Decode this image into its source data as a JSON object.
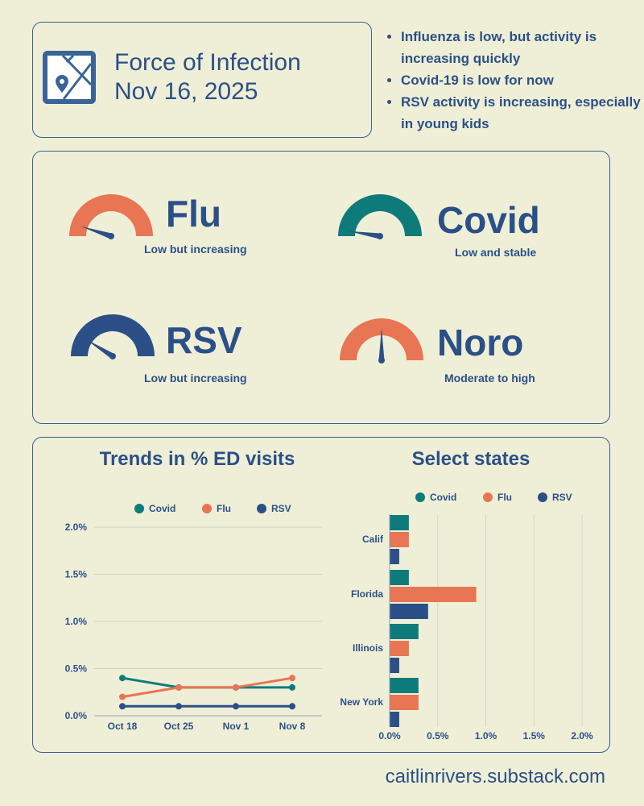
{
  "header": {
    "title_line1": "Force of Infection",
    "title_line2": "Nov 16, 2025",
    "icon": "map-pin-icon"
  },
  "bullets": [
    "Influenza is low, but activity is increasing quickly",
    "Covid-19 is low for now",
    "RSV activity is increasing, especially in young kids"
  ],
  "colors": {
    "covid": "#0e7b7b",
    "flu": "#e87553",
    "rsv": "#2b5087",
    "background": "#efefd7"
  },
  "gauges": [
    {
      "name": "Flu",
      "status": "Low but increasing",
      "color": "#e87553",
      "level": 0.1
    },
    {
      "name": "Covid",
      "status": "Low and stable",
      "color": "#0e7b7b",
      "level": 0.05
    },
    {
      "name": "RSV",
      "status": "Low but increasing",
      "color": "#2b5087",
      "level": 0.18
    },
    {
      "name": "Noro",
      "status": "Moderate to high",
      "color": "#e87553",
      "level": 0.5
    }
  ],
  "chart_data": [
    {
      "type": "line",
      "title": "Trends in % ED visits",
      "categories": [
        "Oct 18",
        "Oct 25",
        "Nov 1",
        "Nov 8"
      ],
      "series": [
        {
          "name": "Covid",
          "values": [
            0.4,
            0.3,
            0.3,
            0.3
          ]
        },
        {
          "name": "Flu",
          "values": [
            0.2,
            0.3,
            0.3,
            0.4
          ]
        },
        {
          "name": "RSV",
          "values": [
            0.1,
            0.1,
            0.1,
            0.1
          ]
        }
      ],
      "yticks": [
        "0.0%",
        "0.5%",
        "1.0%",
        "1.5%",
        "2.0%"
      ],
      "ylim": [
        0,
        2.0
      ],
      "grid": true,
      "legend": "top"
    },
    {
      "type": "bar",
      "orientation": "horizontal",
      "title": "Select states",
      "categories": [
        "Calif",
        "Florida",
        "Illinois",
        "New York"
      ],
      "series": [
        {
          "name": "Covid",
          "values": [
            0.2,
            0.2,
            0.3,
            0.3
          ]
        },
        {
          "name": "Flu",
          "values": [
            0.2,
            0.9,
            0.2,
            0.3
          ]
        },
        {
          "name": "RSV",
          "values": [
            0.1,
            0.4,
            0.1,
            0.1
          ]
        }
      ],
      "xticks": [
        "0.0%",
        "0.5%",
        "1.0%",
        "1.5%",
        "2.0%"
      ],
      "xlim": [
        0,
        2.0
      ],
      "grid": true,
      "legend": "top"
    }
  ],
  "footer": "caitlinrivers.substack.com"
}
